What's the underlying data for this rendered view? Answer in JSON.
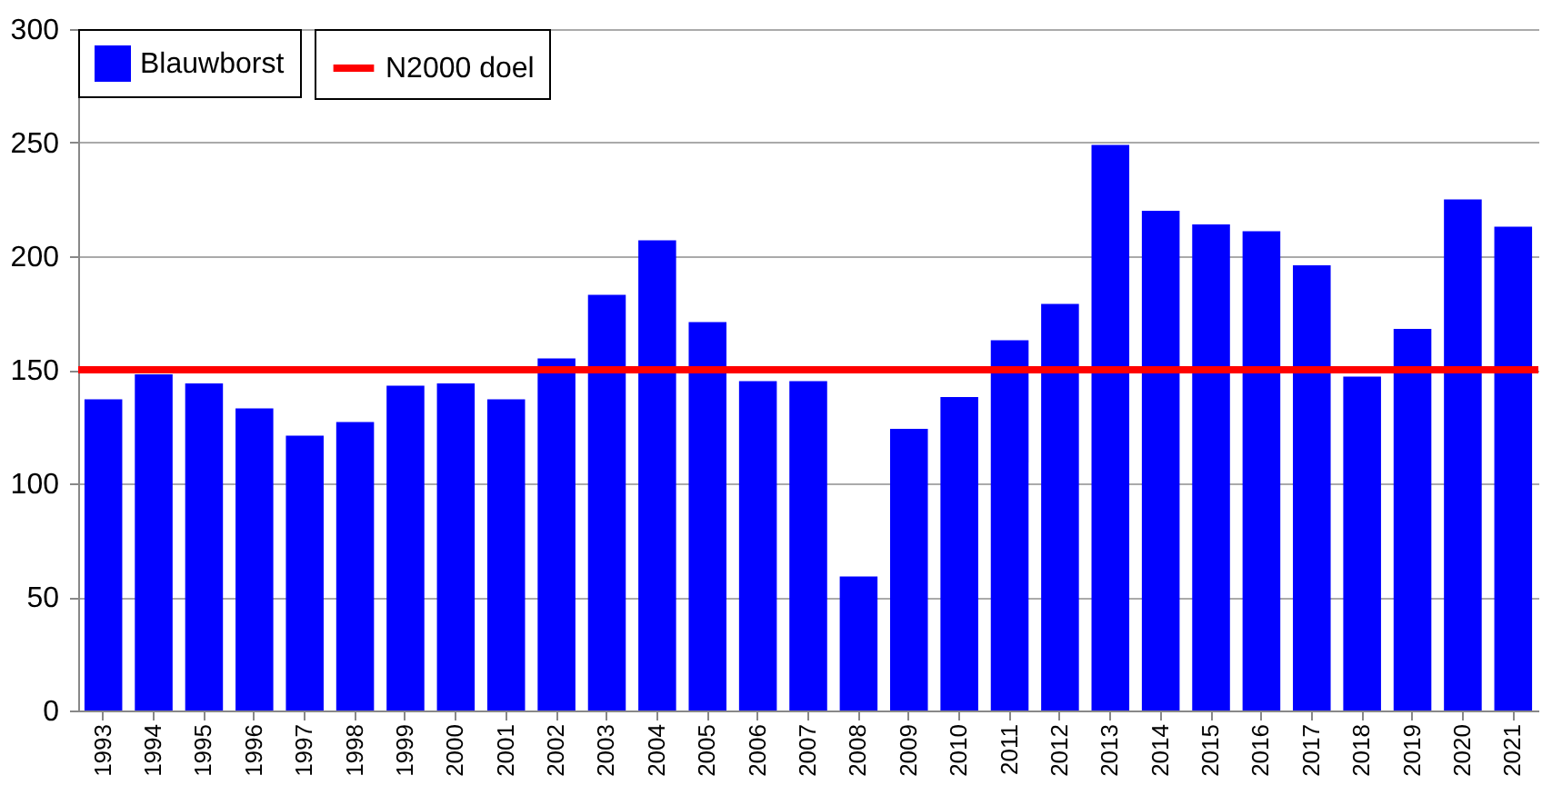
{
  "chart_data": {
    "type": "bar",
    "categories": [
      "1993",
      "1994",
      "1995",
      "1996",
      "1997",
      "1998",
      "1999",
      "2000",
      "2001",
      "2002",
      "2003",
      "2004",
      "2005",
      "2006",
      "2007",
      "2008",
      "2009",
      "2010",
      "2011",
      "2012",
      "2013",
      "2014",
      "2015",
      "2016",
      "2017",
      "2018",
      "2019",
      "2020",
      "2021"
    ],
    "series": [
      {
        "name": "Blauwborst",
        "color": "#0000ff",
        "values": [
          137,
          148,
          144,
          133,
          121,
          127,
          143,
          144,
          137,
          155,
          183,
          207,
          171,
          145,
          145,
          59,
          124,
          138,
          163,
          179,
          249,
          220,
          214,
          211,
          196,
          147,
          168,
          225,
          213
        ]
      }
    ],
    "ref_lines": [
      {
        "axis": "y",
        "value": 150,
        "label": "N2000 doel",
        "color": "#ff0000"
      }
    ],
    "ylim": [
      0,
      300
    ],
    "yticks": [
      0,
      50,
      100,
      150,
      200,
      250,
      300
    ],
    "grid": "y",
    "legend": "top left"
  }
}
